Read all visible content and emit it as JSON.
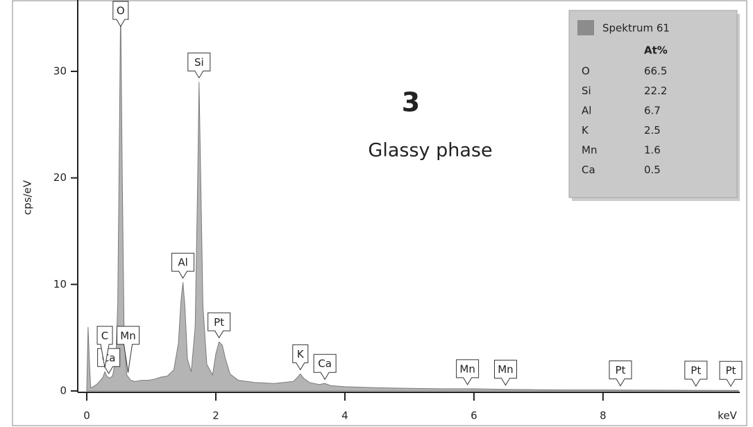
{
  "chart_data": {
    "type": "area",
    "y_label": "cps/eV",
    "x_label": "keV",
    "annotation_number": "3",
    "annotation_number_color": "#e00000",
    "annotation_text": "Glassy phase",
    "xlim": [
      -0.14,
      10.12
    ],
    "ylim": [
      0,
      36.7
    ],
    "xticks": [
      0,
      2,
      4,
      6,
      8
    ],
    "yticks": [
      0,
      10,
      20,
      30
    ],
    "color": "#b4b4b4",
    "line_color": "#7a7a7a",
    "x": [
      0,
      0.02,
      0.04,
      0.06,
      0.1,
      0.15,
      0.2,
      0.25,
      0.28,
      0.31,
      0.35,
      0.4,
      0.45,
      0.48,
      0.5,
      0.525,
      0.55,
      0.58,
      0.62,
      0.68,
      0.75,
      0.85,
      0.95,
      1.05,
      1.15,
      1.25,
      1.35,
      1.42,
      1.46,
      1.49,
      1.52,
      1.56,
      1.62,
      1.68,
      1.72,
      1.74,
      1.76,
      1.8,
      1.86,
      1.95,
      2.0,
      2.05,
      2.1,
      2.15,
      2.22,
      2.35,
      2.6,
      2.9,
      3.2,
      3.27,
      3.31,
      3.36,
      3.45,
      3.6,
      3.69,
      3.78,
      4.0,
      4.5,
      5.0,
      5.5,
      6.0,
      6.5,
      7.0,
      7.5,
      8.0,
      8.5,
      9.0,
      9.5,
      10.1
    ],
    "values": [
      0.2,
      6.0,
      3,
      0.3,
      0.4,
      0.6,
      0.9,
      1.3,
      1.8,
      1.4,
      1.2,
      1.4,
      3,
      8,
      20,
      36.5,
      20,
      5,
      1.5,
      1.0,
      0.9,
      1.0,
      1.0,
      1.1,
      1.3,
      1.4,
      2.0,
      4.5,
      8.5,
      10.2,
      8,
      3,
      1.8,
      6,
      20,
      29,
      22,
      8,
      2.5,
      1.5,
      3.5,
      4.6,
      4.3,
      3,
      1.6,
      1.0,
      0.8,
      0.7,
      0.9,
      1.3,
      1.6,
      1.2,
      0.8,
      0.6,
      0.7,
      0.5,
      0.4,
      0.3,
      0.25,
      0.2,
      0.2,
      0.15,
      0.12,
      0.1,
      0.1,
      0.08,
      0.07,
      0.06,
      0.05
    ],
    "peak_labels": [
      {
        "label": "O",
        "x": 0.525
      },
      {
        "label": "Si",
        "x": 1.74
      },
      {
        "label": "Al",
        "x": 1.49
      },
      {
        "label": "Ca",
        "x": 0.34
      },
      {
        "label": "C",
        "x": 0.28
      },
      {
        "label": "Mn",
        "x": 0.64
      },
      {
        "label": "Pt",
        "x": 2.05
      },
      {
        "label": "K",
        "x": 3.31
      },
      {
        "label": "Ca",
        "x": 3.69
      },
      {
        "label": "Mn",
        "x": 5.9
      },
      {
        "label": "Mn",
        "x": 6.49
      },
      {
        "label": "Pt",
        "x": 8.27
      },
      {
        "label": "Pt",
        "x": 9.44
      },
      {
        "label": "Pt",
        "x": 9.98
      }
    ],
    "legend_table": {
      "title": "Spektrum 61",
      "swatch_color": "#8c8c8c",
      "header": "At%",
      "rows": [
        {
          "element": "O",
          "value": 66.5,
          "color": "#ffffff"
        },
        {
          "element": "Si",
          "value": 22.2,
          "color": "#ffffff"
        },
        {
          "element": "Al",
          "value": 6.7,
          "color": "#ffffff"
        },
        {
          "element": "K",
          "value": 2.5,
          "color": "#ffffff"
        },
        {
          "element": "Mn",
          "value": 1.6,
          "color": "#e00000"
        },
        {
          "element": "Ca",
          "value": 0.5,
          "color": "#e00000"
        }
      ]
    }
  }
}
